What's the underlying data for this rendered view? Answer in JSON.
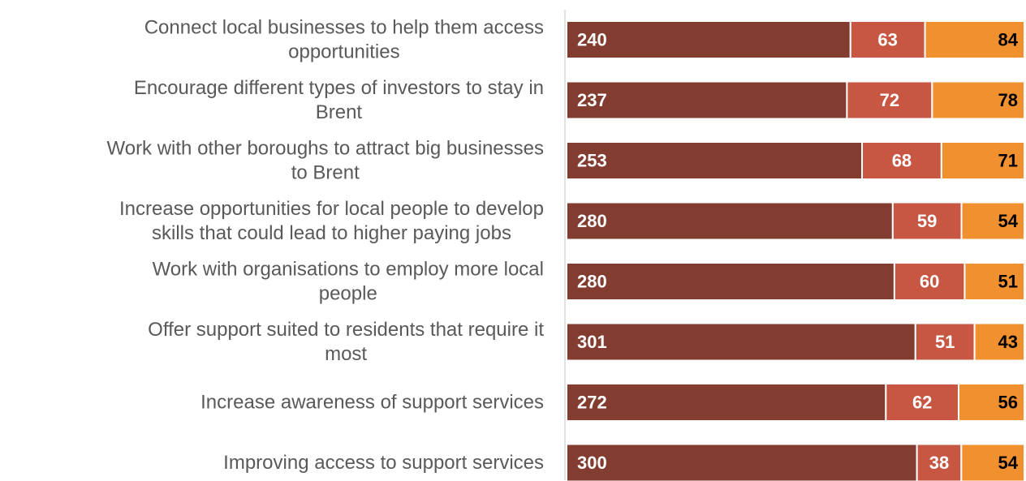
{
  "chart_data": {
    "type": "bar",
    "orientation": "horizontal",
    "stacked": true,
    "percent_stacked": true,
    "categories": [
      [
        "Connect local businesses to help them access",
        "opportunities"
      ],
      [
        "Encourage different types of investors to stay in",
        "Brent"
      ],
      [
        "Work with other boroughs to attract big businesses",
        "to Brent"
      ],
      [
        "Increase  opportunities for local people to develop",
        "skills that could lead to higher paying jobs"
      ],
      [
        "Work with organisations to employ more local",
        "people"
      ],
      [
        "Offer support suited to residents that require it",
        "most"
      ],
      [
        "Increase awareness of support services"
      ],
      [
        "Improving access to support services"
      ]
    ],
    "series": [
      {
        "values": [
          240,
          237,
          253,
          280,
          280,
          301,
          272,
          300
        ],
        "color": "#833c30",
        "label_color": "#ffffff"
      },
      {
        "values": [
          63,
          72,
          68,
          59,
          60,
          51,
          62,
          38
        ],
        "color": "#c75642",
        "label_color": "#ffffff"
      },
      {
        "values": [
          84,
          78,
          71,
          54,
          51,
          43,
          56,
          54
        ],
        "color": "#f0902e",
        "label_color": "#000000"
      }
    ],
    "grid": false,
    "legend": "none"
  }
}
